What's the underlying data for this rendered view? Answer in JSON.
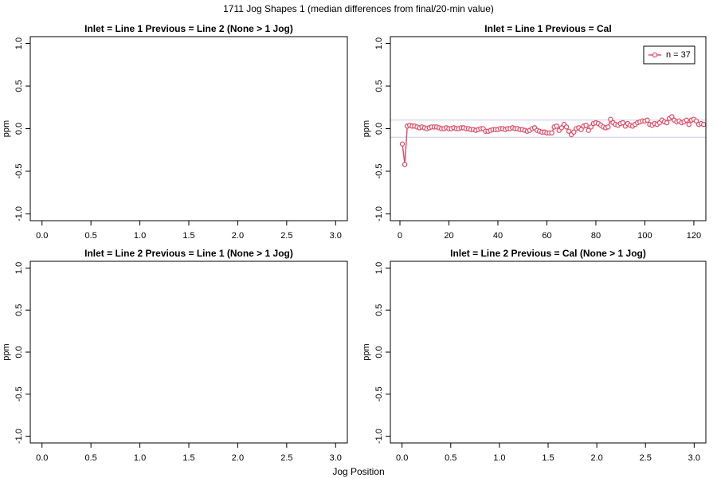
{
  "title": "1711 Jog Shapes 1 (median differences from final/20-min value)",
  "xlabel": "Jog Position",
  "chart_data": [
    {
      "type": "line",
      "title": "Inlet = Line 1  Previous = Line 2 (None > 1 Jog)",
      "ylabel": "ppm",
      "xlim": [
        -0.12,
        3.12
      ],
      "ylim": [
        -1.08,
        1.08
      ],
      "xticks": [
        {
          "value": 0,
          "label": "0.0"
        },
        {
          "value": 0.5,
          "label": "0.5"
        },
        {
          "value": 1,
          "label": "1.0"
        },
        {
          "value": 1.5,
          "label": "1.5"
        },
        {
          "value": 2,
          "label": "2.0"
        },
        {
          "value": 2.5,
          "label": "2.5"
        },
        {
          "value": 3,
          "label": "3.0"
        }
      ],
      "yticks": [
        {
          "value": -1,
          "label": "-1.0"
        },
        {
          "value": -0.5,
          "label": "-0.5"
        },
        {
          "value": 0,
          "label": "0.0"
        },
        {
          "value": 0.5,
          "label": "0.5"
        },
        {
          "value": 1,
          "label": "1.0"
        }
      ],
      "series": []
    },
    {
      "type": "line",
      "title": "Inlet = Line 1  Previous = Cal",
      "ylabel": "ppm",
      "xlim": [
        -3.9,
        124.9
      ],
      "ylim": [
        -1.08,
        1.08
      ],
      "xticks": [
        0,
        20,
        40,
        60,
        80,
        100,
        120
      ],
      "yticks": [
        {
          "value": -1,
          "label": "-1.0"
        },
        {
          "value": -0.5,
          "label": "-0.5"
        },
        {
          "value": 0,
          "label": "0.0"
        },
        {
          "value": 0.5,
          "label": "0.5"
        },
        {
          "value": 1,
          "label": "1.0"
        }
      ],
      "hlines": [
        -0.1,
        0.1
      ],
      "hline_color": "#c8cce0",
      "legend": "topright",
      "x": [
        1,
        2,
        3,
        4,
        5,
        6,
        7,
        8,
        9,
        10,
        11,
        12,
        13,
        14,
        15,
        16,
        17,
        18,
        19,
        20,
        21,
        22,
        23,
        24,
        25,
        26,
        27,
        28,
        29,
        30,
        31,
        32,
        33,
        34,
        35,
        36,
        37,
        38,
        39,
        40,
        41,
        42,
        43,
        44,
        45,
        46,
        47,
        48,
        49,
        50,
        51,
        52,
        53,
        54,
        55,
        56,
        57,
        58,
        59,
        60,
        61,
        62,
        63,
        64,
        65,
        66,
        67,
        68,
        69,
        70,
        71,
        72,
        73,
        74,
        75,
        76,
        77,
        78,
        79,
        80,
        81,
        82,
        83,
        84,
        85,
        86,
        87,
        88,
        89,
        90,
        91,
        92,
        93,
        94,
        95,
        96,
        97,
        98,
        99,
        100,
        101,
        102,
        103,
        104,
        105,
        106,
        107,
        108,
        109,
        110,
        111,
        112,
        113,
        114,
        115,
        116,
        117,
        118,
        119,
        120,
        121,
        122,
        123,
        124
      ],
      "series": [
        {
          "name": "n = 37",
          "color": "#df536b",
          "values": [
            -0.18,
            -0.42,
            0.03,
            0.04,
            0.03,
            0.03,
            0.02,
            0.01,
            0.02,
            0.01,
            0.0,
            0.01,
            0.02,
            0.02,
            0.02,
            0.01,
            0.0,
            0.0,
            0.01,
            0.0,
            0.0,
            0.01,
            0.0,
            0.0,
            0.01,
            0.01,
            0.0,
            0.0,
            -0.01,
            -0.01,
            -0.02,
            -0.01,
            0.0,
            0.0,
            -0.03,
            -0.03,
            -0.02,
            -0.01,
            -0.01,
            -0.01,
            0.0,
            0.0,
            -0.01,
            0.0,
            0.0,
            0.01,
            0.0,
            0.0,
            -0.01,
            -0.01,
            -0.02,
            -0.03,
            -0.02,
            0.0,
            0.01,
            -0.02,
            -0.03,
            -0.04,
            -0.04,
            -0.05,
            -0.05,
            -0.05,
            0.02,
            0.03,
            -0.02,
            0.01,
            0.05,
            0.02,
            -0.03,
            -0.07,
            -0.04,
            0.0,
            0.01,
            -0.01,
            0.03,
            0.04,
            -0.02,
            0.02,
            0.06,
            0.07,
            0.06,
            0.04,
            0.02,
            0.01,
            0.02,
            0.11,
            0.07,
            0.05,
            0.04,
            0.06,
            0.07,
            0.03,
            0.06,
            0.04,
            0.03,
            0.05,
            0.07,
            0.08,
            0.09,
            0.09,
            0.1,
            0.05,
            0.04,
            0.06,
            0.05,
            0.07,
            0.1,
            0.08,
            0.07,
            0.12,
            0.14,
            0.1,
            0.08,
            0.09,
            0.07,
            0.08,
            0.1,
            0.05,
            0.1,
            0.11,
            0.09,
            0.05,
            0.06,
            0.05
          ]
        }
      ]
    },
    {
      "type": "line",
      "title": "Inlet = Line 2  Previous = Line 1 (None > 1 Jog)",
      "ylabel": "ppm",
      "xlim": [
        -0.12,
        3.12
      ],
      "ylim": [
        -1.08,
        1.08
      ],
      "xticks": [
        {
          "value": 0,
          "label": "0.0"
        },
        {
          "value": 0.5,
          "label": "0.5"
        },
        {
          "value": 1,
          "label": "1.0"
        },
        {
          "value": 1.5,
          "label": "1.5"
        },
        {
          "value": 2,
          "label": "2.0"
        },
        {
          "value": 2.5,
          "label": "2.5"
        },
        {
          "value": 3,
          "label": "3.0"
        }
      ],
      "yticks": [
        {
          "value": -1,
          "label": "-1.0"
        },
        {
          "value": -0.5,
          "label": "-0.5"
        },
        {
          "value": 0,
          "label": "0.0"
        },
        {
          "value": 0.5,
          "label": "0.5"
        },
        {
          "value": 1,
          "label": "1.0"
        }
      ],
      "series": []
    },
    {
      "type": "line",
      "title": "Inlet = Line 2  Previous = Cal (None > 1 Jog)",
      "ylabel": "ppm",
      "xlim": [
        -0.12,
        3.12
      ],
      "ylim": [
        -1.08,
        1.08
      ],
      "xticks": [
        {
          "value": 0,
          "label": "0.0"
        },
        {
          "value": 0.5,
          "label": "0.5"
        },
        {
          "value": 1,
          "label": "1.0"
        },
        {
          "value": 1.5,
          "label": "1.5"
        },
        {
          "value": 2,
          "label": "2.0"
        },
        {
          "value": 2.5,
          "label": "2.5"
        },
        {
          "value": 3,
          "label": "3.0"
        }
      ],
      "yticks": [
        {
          "value": -1,
          "label": "-1.0"
        },
        {
          "value": -0.5,
          "label": "-0.5"
        },
        {
          "value": 0,
          "label": "0.0"
        },
        {
          "value": 0.5,
          "label": "0.5"
        },
        {
          "value": 1,
          "label": "1.0"
        }
      ],
      "series": []
    }
  ]
}
